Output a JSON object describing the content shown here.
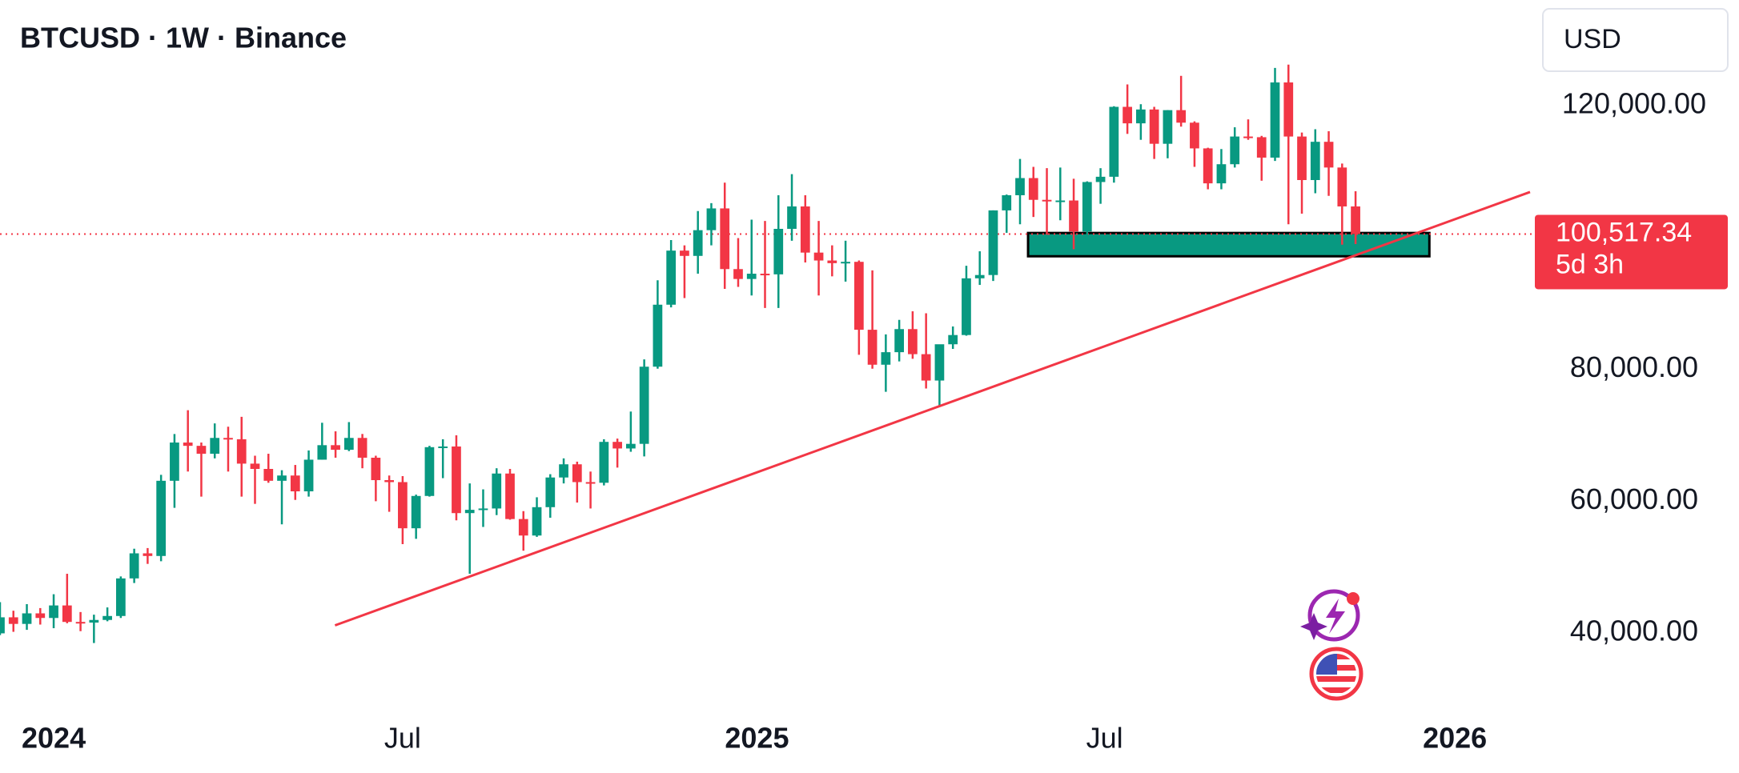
{
  "chart_data": {
    "type": "candlestick",
    "title": "BTCUSD · 1W · Binance",
    "currency": "USD",
    "up_color": "#089981",
    "down_color": "#f23645",
    "ohlc": [
      [
        39970,
        44700,
        39700,
        42400
      ],
      [
        42400,
        43400,
        40200,
        41400
      ],
      [
        41400,
        44400,
        40500,
        43000
      ],
      [
        43000,
        43800,
        41300,
        42300
      ],
      [
        42300,
        45900,
        40750,
        44200
      ],
      [
        44200,
        49000,
        41500,
        41700
      ],
      [
        41700,
        43200,
        40300,
        41600
      ],
      [
        41600,
        42800,
        38500,
        42000
      ],
      [
        42000,
        43900,
        41800,
        42600
      ],
      [
        42600,
        48600,
        42300,
        48300
      ],
      [
        48300,
        52800,
        47600,
        52100
      ],
      [
        52100,
        52900,
        50500,
        51700
      ],
      [
        51700,
        64000,
        50900,
        63100
      ],
      [
        63100,
        70200,
        59000,
        68900
      ],
      [
        68900,
        73800,
        64500,
        68400
      ],
      [
        68400,
        68900,
        60700,
        67200
      ],
      [
        67200,
        71800,
        66500,
        69600
      ],
      [
        69600,
        71300,
        64500,
        69400
      ],
      [
        69400,
        72800,
        60700,
        65700
      ],
      [
        65700,
        66900,
        59600,
        64900
      ],
      [
        64900,
        67200,
        62800,
        63100
      ],
      [
        63100,
        64700,
        56500,
        63900
      ],
      [
        63900,
        65500,
        60200,
        61500
      ],
      [
        61500,
        67700,
        60700,
        66300
      ],
      [
        66300,
        71900,
        66300,
        68500
      ],
      [
        68500,
        70600,
        66600,
        67800
      ],
      [
        67800,
        72000,
        67600,
        69600
      ],
      [
        69600,
        70200,
        65000,
        66600
      ],
      [
        66600,
        66900,
        60000,
        63200
      ],
      [
        63200,
        63900,
        58400,
        62900
      ],
      [
        62900,
        63800,
        53500,
        55900
      ],
      [
        55900,
        61000,
        54300,
        60800
      ],
      [
        60800,
        68400,
        60700,
        68200
      ],
      [
        68200,
        69400,
        63500,
        68300
      ],
      [
        68300,
        70000,
        57100,
        58200
      ],
      [
        58200,
        62700,
        49000,
        58700
      ],
      [
        58700,
        61800,
        56100,
        58900
      ],
      [
        58900,
        65000,
        57900,
        64200
      ],
      [
        64200,
        64900,
        57200,
        57300
      ],
      [
        57300,
        58500,
        52500,
        54800
      ],
      [
        54800,
        60600,
        54600,
        59100
      ],
      [
        59100,
        64100,
        57500,
        63600
      ],
      [
        63600,
        66500,
        62700,
        65600
      ],
      [
        65600,
        66000,
        59800,
        62900
      ],
      [
        62900,
        64500,
        58900,
        62800
      ],
      [
        62800,
        69400,
        62400,
        69000
      ],
      [
        69000,
        69500,
        65100,
        68000
      ],
      [
        68000,
        73600,
        67500,
        68700
      ],
      [
        68700,
        81500,
        66800,
        80400
      ],
      [
        80400,
        93500,
        80100,
        89800
      ],
      [
        89800,
        99600,
        89400,
        98000
      ],
      [
        98000,
        98800,
        90800,
        97200
      ],
      [
        97200,
        104000,
        94500,
        101100
      ],
      [
        101100,
        105200,
        98800,
        104400
      ],
      [
        104400,
        108300,
        92200,
        95200
      ],
      [
        95200,
        99900,
        92500,
        93700
      ],
      [
        93700,
        102700,
        91200,
        94500
      ],
      [
        94500,
        102500,
        89300,
        94400
      ],
      [
        94400,
        106400,
        89300,
        101300
      ],
      [
        101300,
        109600,
        99500,
        104700
      ],
      [
        104700,
        106400,
        96200,
        97700
      ],
      [
        97700,
        102500,
        91200,
        96500
      ],
      [
        96500,
        98800,
        94100,
        96100
      ],
      [
        96100,
        99500,
        93300,
        96300
      ],
      [
        96300,
        96500,
        82200,
        86000
      ],
      [
        86000,
        95000,
        80100,
        80700
      ],
      [
        80700,
        85300,
        76600,
        82600
      ],
      [
        82600,
        87500,
        81200,
        86100
      ],
      [
        86100,
        88800,
        81600,
        82300
      ],
      [
        82300,
        88500,
        77100,
        78300
      ],
      [
        78300,
        83600,
        74500,
        83800
      ],
      [
        83800,
        86500,
        83100,
        85200
      ],
      [
        85200,
        95700,
        85100,
        93800
      ],
      [
        93800,
        97900,
        92800,
        94300
      ],
      [
        94300,
        104100,
        93400,
        104100
      ],
      [
        104100,
        106500,
        100700,
        106400
      ],
      [
        106400,
        111900,
        102000,
        109000
      ],
      [
        109000,
        110700,
        103100,
        105700
      ],
      [
        105700,
        110500,
        100400,
        105600
      ],
      [
        105600,
        110600,
        102600,
        105600
      ],
      [
        105600,
        108900,
        98200,
        100900
      ],
      [
        100900,
        108500,
        99600,
        108400
      ],
      [
        108400,
        110500,
        105100,
        109200
      ],
      [
        109200,
        119900,
        108300,
        119800
      ],
      [
        119800,
        123200,
        115700,
        117300
      ],
      [
        117300,
        120200,
        114800,
        119400
      ],
      [
        119400,
        119800,
        111900,
        114200
      ],
      [
        114200,
        119300,
        112000,
        119300
      ],
      [
        119300,
        124500,
        116800,
        117400
      ],
      [
        117400,
        117600,
        110700,
        113500
      ],
      [
        113500,
        113600,
        107300,
        108200
      ],
      [
        108200,
        113400,
        107300,
        111100
      ],
      [
        111100,
        116700,
        110600,
        115300
      ],
      [
        115300,
        117900,
        114800,
        115200
      ],
      [
        115200,
        115400,
        108600,
        112100
      ],
      [
        112100,
        125700,
        111600,
        123500
      ],
      [
        123500,
        126200,
        102000,
        115300
      ],
      [
        115300,
        115900,
        103600,
        108700
      ],
      [
        108700,
        116400,
        106700,
        114500
      ],
      [
        114500,
        116100,
        106300,
        110600
      ],
      [
        110600,
        111200,
        98900,
        104700
      ],
      [
        104700,
        107000,
        99000,
        100517.34
      ]
    ],
    "current_price": {
      "value": 100517.34,
      "label": "100,517.34",
      "countdown": "5d 3h"
    },
    "trendline": {
      "color": "#f23645",
      "points": [
        [
          24.96,
          41180
        ],
        [
          114,
          106890
        ]
      ]
    },
    "zone": {
      "color": "#089981",
      "x": [
        76.6,
        106.5
      ],
      "y": [
        97143,
        100673
      ]
    },
    "xlim": [
      0,
      114
    ],
    "ylim": [
      28500,
      136000
    ],
    "xticks": [
      {
        "value": 4,
        "label": "2024"
      },
      {
        "value": 30,
        "label": "Jul"
      },
      {
        "value": 56.4,
        "label": "2025"
      },
      {
        "value": 82.3,
        "label": "Jul"
      },
      {
        "value": 108.4,
        "label": "2026"
      }
    ],
    "yticks": [
      {
        "value": 40000,
        "label": "40,000.00"
      },
      {
        "value": 60000,
        "label": "60,000.00"
      },
      {
        "value": 80000,
        "label": "80,000.00"
      },
      {
        "value": 120000,
        "label": "120,000.00"
      }
    ]
  }
}
